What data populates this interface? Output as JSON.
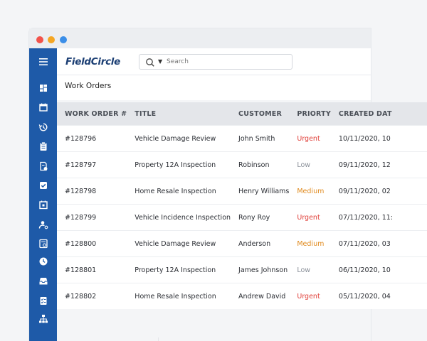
{
  "app": {
    "logo": "FieldCircle"
  },
  "search": {
    "placeholder": "Search"
  },
  "page": {
    "title": "Work Orders"
  },
  "table": {
    "headers": [
      "WORK ORDER #",
      "TITLE",
      "CUSTOMER",
      "PRIORTY",
      "CREATED DAT"
    ],
    "rows": [
      {
        "id": "#128796",
        "title": "Vehicle Damage Review",
        "customer": "John Smith",
        "priority": "Urgent",
        "created": "10/11/2020, 10"
      },
      {
        "id": "#128797",
        "title": "Property 12A Inspection",
        "customer": "Robinson",
        "priority": "Low",
        "created": "09/11/2020, 12"
      },
      {
        "id": "#128798",
        "title": "Home Resale Inspection",
        "customer": "Henry Williams",
        "priority": "Medium",
        "created": "09/11/2020, 02"
      },
      {
        "id": "#128799",
        "title": "Vehicle Incidence Inspection",
        "customer": "Rony Roy",
        "priority": "Urgent",
        "created": "07/11/2020, 11:"
      },
      {
        "id": "#128800",
        "title": "Vehicle Damage Review",
        "customer": "Anderson",
        "priority": "Medium",
        "created": "07/11/2020, 03"
      },
      {
        "id": "#128801",
        "title": "Property 12A Inspection",
        "customer": "James Johnson",
        "priority": "Low",
        "created": "06/11/2020, 10"
      },
      {
        "id": "#128802",
        "title": "Home Resale Inspection",
        "customer": "Andrew David",
        "priority": "Urgent",
        "created": "05/11/2020, 04"
      }
    ]
  },
  "sidebar": {
    "icons": [
      "menu-icon",
      "dashboard-icon",
      "calendar-icon",
      "history-icon",
      "clipboard-icon",
      "invoice-icon",
      "checkbox-icon",
      "schedule-icon",
      "user-settings-icon",
      "report-icon",
      "clock-icon",
      "inbox-icon",
      "checklist-icon",
      "sitemap-icon"
    ]
  },
  "colors": {
    "sidebar": "#1e5aa8",
    "urgent": "#e0403a",
    "medium": "#e08a1e",
    "low": "#8a9099"
  }
}
